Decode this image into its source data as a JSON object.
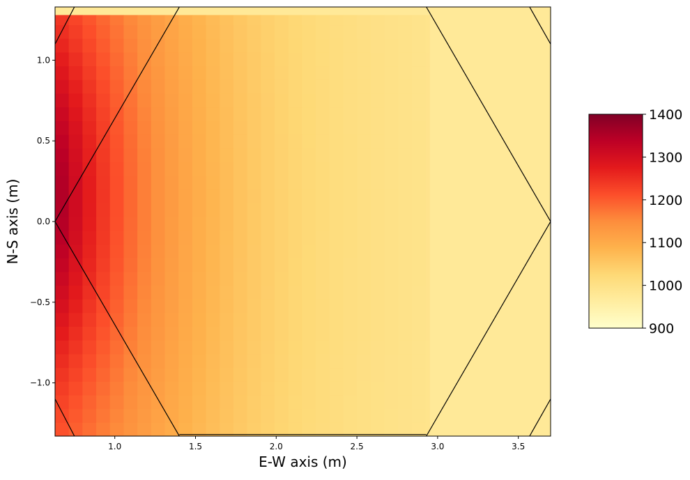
{
  "chart_data": {
    "type": "heatmap",
    "title": "",
    "xlabel": "E-W axis (m)",
    "ylabel": "N-S axis (m)",
    "xlim": [
      0.63,
      3.7
    ],
    "ylim": [
      -1.33,
      1.33
    ],
    "x_ticks": [
      {
        "value": 1.0,
        "label": "1.0"
      },
      {
        "value": 1.5,
        "label": "1.5"
      },
      {
        "value": 2.0,
        "label": "2.0"
      },
      {
        "value": 2.5,
        "label": "2.5"
      },
      {
        "value": 3.0,
        "label": "3.0"
      },
      {
        "value": 3.5,
        "label": "3.5"
      }
    ],
    "y_ticks": [
      {
        "value": 1.0,
        "label": "1.0"
      },
      {
        "value": 0.5,
        "label": "0.5"
      },
      {
        "value": 0.0,
        "label": "0.0"
      },
      {
        "value": -0.5,
        "label": "−0.5"
      },
      {
        "value": -1.0,
        "label": "−1.0"
      }
    ],
    "colorbar": {
      "range": [
        900,
        1400
      ],
      "ticks": [
        {
          "value": 1400,
          "label": "1400"
        },
        {
          "value": 1300,
          "label": "1300"
        },
        {
          "value": 1200,
          "label": "1200"
        },
        {
          "value": 1100,
          "label": "1100"
        },
        {
          "value": 1000,
          "label": "1000"
        },
        {
          "value": 900,
          "label": "900"
        }
      ],
      "colormap": "YlOrRd",
      "stops": [
        "#ffffcc",
        "#ffeda0",
        "#fed976",
        "#feb24c",
        "#fd8d3c",
        "#fc4e2a",
        "#e31a1c",
        "#bd0026",
        "#800026"
      ]
    },
    "grid": false,
    "field": {
      "description": "Temperature-like field peaking near the west edge, decaying toward the east",
      "peak_value": 1360,
      "peak_location": [
        0.65,
        0.15
      ],
      "background_value": 975,
      "x_range": [
        0.63,
        2.95
      ],
      "y_range": [
        -1.33,
        1.28
      ],
      "cell_size": 0.085
    },
    "boundary_lines": [
      [
        [
          0.63,
          1.1
        ],
        [
          0.75,
          1.33
        ]
      ],
      [
        [
          1.4,
          1.33
        ],
        [
          0.63,
          0.0
        ]
      ],
      [
        [
          0.63,
          0.0
        ],
        [
          1.4,
          -1.33
        ]
      ],
      [
        [
          0.63,
          -1.1
        ],
        [
          0.75,
          -1.33
        ]
      ],
      [
        [
          1.4,
          -1.32
        ],
        [
          2.93,
          -1.32
        ]
      ],
      [
        [
          2.93,
          1.33
        ],
        [
          3.7,
          0.0
        ]
      ],
      [
        [
          3.7,
          0.0
        ],
        [
          2.93,
          -1.33
        ]
      ],
      [
        [
          3.57,
          1.33
        ],
        [
          3.7,
          1.1
        ]
      ],
      [
        [
          3.57,
          -1.33
        ],
        [
          3.7,
          -1.1
        ]
      ]
    ]
  }
}
